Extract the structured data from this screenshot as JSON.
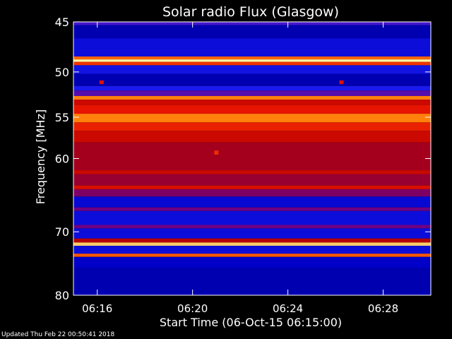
{
  "chart_data": {
    "type": "heatmap",
    "title": "Solar radio Flux (Glasgow)",
    "xlabel": "Start Time (06-Oct-15 06:15:00)",
    "ylabel": "Frequency [MHz]",
    "xlim": [
      "06:15:00",
      "06:30:00"
    ],
    "ylim": [
      45,
      80
    ],
    "y_scale": "log",
    "y_inverted": true,
    "x_ticks": [
      "06:16",
      "06:20",
      "06:24",
      "06:28"
    ],
    "y_ticks": [
      45,
      50,
      55,
      60,
      70,
      80
    ],
    "colormap": "blue-red-yellow",
    "frequency_bands": [
      {
        "f0": 45.0,
        "f1": 45.3,
        "level": 0.35
      },
      {
        "f0": 45.3,
        "f1": 46.6,
        "level": 0.12
      },
      {
        "f0": 46.6,
        "f1": 48.4,
        "level": 0.2
      },
      {
        "f0": 48.4,
        "f1": 48.7,
        "level": 0.82
      },
      {
        "f0": 48.7,
        "f1": 48.95,
        "level": 1.0
      },
      {
        "f0": 48.95,
        "f1": 49.3,
        "level": 0.75
      },
      {
        "f0": 49.3,
        "f1": 50.2,
        "level": 0.22
      },
      {
        "f0": 50.2,
        "f1": 51.5,
        "level": 0.12
      },
      {
        "f0": 51.5,
        "f1": 52.0,
        "level": 0.25
      },
      {
        "f0": 52.0,
        "f1": 52.6,
        "level": 0.38
      },
      {
        "f0": 52.6,
        "f1": 53.0,
        "level": 0.86
      },
      {
        "f0": 53.0,
        "f1": 53.6,
        "level": 0.62
      },
      {
        "f0": 53.6,
        "f1": 54.6,
        "level": 0.7
      },
      {
        "f0": 54.6,
        "f1": 55.6,
        "level": 0.86
      },
      {
        "f0": 55.6,
        "f1": 56.6,
        "level": 0.72
      },
      {
        "f0": 56.6,
        "f1": 58.0,
        "level": 0.62
      },
      {
        "f0": 58.0,
        "f1": 61.5,
        "level": 0.52
      },
      {
        "f0": 61.5,
        "f1": 62.0,
        "level": 0.62
      },
      {
        "f0": 62.0,
        "f1": 63.5,
        "level": 0.5
      },
      {
        "f0": 63.5,
        "f1": 64.0,
        "level": 0.66
      },
      {
        "f0": 64.0,
        "f1": 65.0,
        "level": 0.45
      },
      {
        "f0": 65.0,
        "f1": 66.5,
        "level": 0.18
      },
      {
        "f0": 66.5,
        "f1": 67.0,
        "level": 0.42
      },
      {
        "f0": 67.0,
        "f1": 69.0,
        "level": 0.2
      },
      {
        "f0": 69.0,
        "f1": 69.5,
        "level": 0.42
      },
      {
        "f0": 69.5,
        "f1": 71.0,
        "level": 0.2
      },
      {
        "f0": 71.0,
        "f1": 71.6,
        "level": 0.55
      },
      {
        "f0": 71.6,
        "f1": 72.1,
        "level": 0.95
      },
      {
        "f0": 72.1,
        "f1": 73.3,
        "level": 0.2
      },
      {
        "f0": 73.3,
        "f1": 73.8,
        "level": 0.8
      },
      {
        "f0": 73.8,
        "f1": 75.5,
        "level": 0.15
      },
      {
        "f0": 75.5,
        "f1": 80.0,
        "level": 0.12
      }
    ],
    "bursts": [
      {
        "time": "06:16:11",
        "f0": 50.9,
        "f1": 51.3,
        "level": 0.68
      },
      {
        "time": "06:26:15",
        "f0": 50.9,
        "f1": 51.3,
        "level": 0.68
      },
      {
        "time": "06:21:00",
        "f0": 59.0,
        "f1": 59.5,
        "level": 0.74
      }
    ]
  },
  "footer": "Updated Thu Feb 22 00:50:41 2018"
}
